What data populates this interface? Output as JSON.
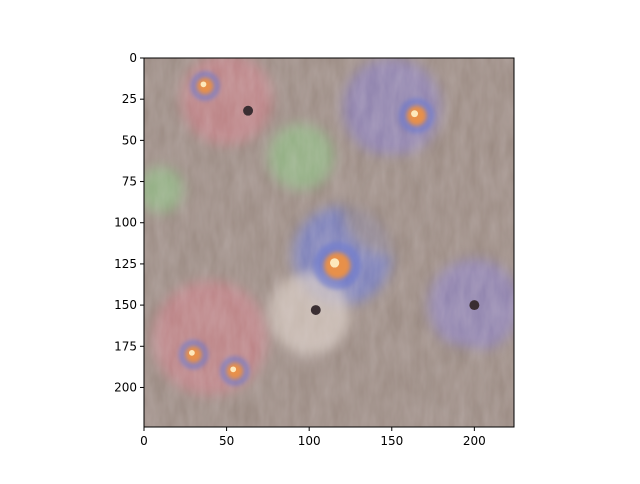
{
  "chart_data": {
    "type": "heatmap",
    "content": "generated-image",
    "xlim": [
      0,
      224
    ],
    "ylim": [
      224,
      0
    ],
    "y_axis": "inverted",
    "x_ticks": [
      0,
      50,
      100,
      150,
      200
    ],
    "y_ticks": [
      0,
      25,
      50,
      75,
      100,
      125,
      150,
      175,
      200
    ],
    "title": "",
    "xlabel": "",
    "ylabel": "",
    "grid": false,
    "colors": {
      "base": "#9a8a82",
      "pink": "#c97f86",
      "purple": "#8a7fc0",
      "blue": "#6d7ad0",
      "green": "#8fbf84",
      "orange": "#e8904a",
      "dark": "#3a2e32",
      "light": "#d9ccc3"
    },
    "features": [
      {
        "kind": "eye",
        "x": 37,
        "y": 17,
        "r": 5,
        "color": "#e8904a"
      },
      {
        "kind": "eye",
        "x": 165,
        "y": 35,
        "r": 6,
        "color": "#e8904a"
      },
      {
        "kind": "eye",
        "x": 117,
        "y": 126,
        "r": 8,
        "color": "#e8904a"
      },
      {
        "kind": "eye",
        "x": 30,
        "y": 180,
        "r": 5,
        "color": "#e8904a"
      },
      {
        "kind": "eye",
        "x": 55,
        "y": 190,
        "r": 5,
        "color": "#e8904a"
      },
      {
        "kind": "nose",
        "x": 63,
        "y": 32,
        "r": 3,
        "color": "#3a2e32"
      },
      {
        "kind": "nose",
        "x": 104,
        "y": 153,
        "r": 3,
        "color": "#3a2e32"
      },
      {
        "kind": "nose",
        "x": 200,
        "y": 150,
        "r": 3,
        "color": "#3a2e32"
      },
      {
        "kind": "face",
        "x": 50,
        "y": 25,
        "r": 28,
        "color": "#c97f86"
      },
      {
        "kind": "face",
        "x": 150,
        "y": 30,
        "r": 30,
        "color": "#8a7fc0"
      },
      {
        "kind": "face",
        "x": 120,
        "y": 120,
        "r": 30,
        "color": "#6d7ad0"
      },
      {
        "kind": "face",
        "x": 40,
        "y": 170,
        "r": 35,
        "color": "#c97f86"
      },
      {
        "kind": "face",
        "x": 200,
        "y": 150,
        "r": 28,
        "color": "#8a7fc0"
      },
      {
        "kind": "face",
        "x": 100,
        "y": 155,
        "r": 25,
        "color": "#d9ccc3"
      },
      {
        "kind": "patch",
        "x": 95,
        "y": 60,
        "r": 20,
        "color": "#8fbf84"
      },
      {
        "kind": "patch",
        "x": 10,
        "y": 80,
        "r": 14,
        "color": "#8fbf84"
      },
      {
        "kind": "patch",
        "x": 190,
        "y": 200,
        "r": 25,
        "color": "#9a8a82"
      },
      {
        "kind": "patch",
        "x": 150,
        "y": 90,
        "r": 30,
        "color": "#9a8a82"
      }
    ]
  }
}
